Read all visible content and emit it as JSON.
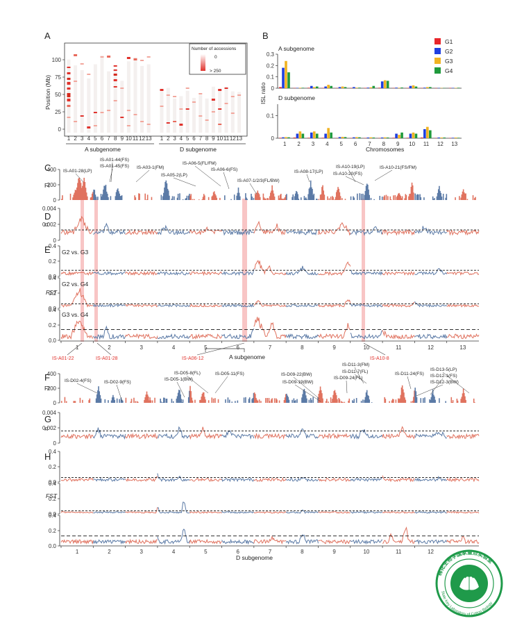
{
  "colors": {
    "red": "#e0725f",
    "blue": "#5b7aa6",
    "dark_red": "#d42a1e",
    "G1": "#e8262b",
    "G2": "#1f3fe0",
    "G3": "#f0b323",
    "G4": "#1f9a3c",
    "highlight": "#f6b7b7",
    "seal": "#1f9a4a"
  },
  "panelA": {
    "letter": "A",
    "ylabel": "Position (Mb)",
    "yticks": [
      "100",
      "75",
      "50",
      "25",
      "0"
    ],
    "xticks_A": [
      "1",
      "2",
      "3",
      "4",
      "5",
      "6",
      "7",
      "8",
      "9",
      "10",
      "11",
      "12",
      "13"
    ],
    "xticks_D": [
      "1",
      "2",
      "3",
      "4",
      "5",
      "6",
      "7",
      "8",
      "9",
      "10",
      "11",
      "12",
      "13"
    ],
    "group_A": "A subgenome",
    "group_D": "D subgenome",
    "legend_title": "Number of accessions",
    "legend_min": "0",
    "legend_max": "> 250"
  },
  "chart_data": [
    {
      "type": "bar",
      "panel": "B",
      "title": "A subgenome",
      "ylabel": "ISL ratio",
      "ylim": [
        0,
        0.3
      ],
      "yticks": [
        "0.3",
        "0.2",
        "0.1",
        "0"
      ],
      "categories": [
        "1",
        "2",
        "3",
        "4",
        "5",
        "6",
        "7",
        "8",
        "9",
        "10",
        "11",
        "12",
        "13"
      ],
      "series": [
        {
          "name": "G1",
          "values": [
            0.01,
            0.002,
            0.004,
            0.003,
            0.002,
            0.002,
            0.003,
            0.004,
            0.002,
            0.003,
            0.002,
            0.001,
            0.002
          ]
        },
        {
          "name": "G2",
          "values": [
            0.18,
            0.003,
            0.02,
            0.015,
            0.01,
            0.01,
            0.005,
            0.06,
            0.005,
            0.02,
            0.005,
            0.002,
            0.003
          ]
        },
        {
          "name": "G3",
          "values": [
            0.24,
            0.004,
            0.01,
            0.03,
            0.015,
            0.005,
            0.008,
            0.07,
            0.004,
            0.025,
            0.01,
            0.002,
            0.003
          ]
        },
        {
          "name": "G4",
          "values": [
            0.14,
            0.004,
            0.015,
            0.02,
            0.01,
            0.005,
            0.02,
            0.065,
            0.006,
            0.015,
            0.01,
            0.002,
            0.004
          ]
        }
      ]
    },
    {
      "type": "bar",
      "panel": "B",
      "title": "D subgenome",
      "xlabel": "Chromosomes",
      "ylim": [
        0,
        0.15
      ],
      "yticks": [
        "0.1",
        "0"
      ],
      "categories": [
        "1",
        "2",
        "3",
        "4",
        "5",
        "6",
        "7",
        "8",
        "9",
        "10",
        "11",
        "12",
        "13"
      ],
      "series": [
        {
          "name": "G1",
          "values": [
            0.002,
            0.003,
            0.002,
            0.002,
            0.001,
            0.001,
            0.001,
            0.001,
            0.002,
            0.002,
            0.003,
            0.001,
            0.001
          ]
        },
        {
          "name": "G2",
          "values": [
            0.004,
            0.02,
            0.025,
            0.02,
            0.005,
            0.004,
            0.003,
            0.003,
            0.02,
            0.02,
            0.04,
            0.003,
            0.002
          ]
        },
        {
          "name": "G3",
          "values": [
            0.005,
            0.03,
            0.03,
            0.045,
            0.006,
            0.005,
            0.004,
            0.004,
            0.015,
            0.025,
            0.05,
            0.003,
            0.003
          ]
        },
        {
          "name": "G4",
          "values": [
            0.004,
            0.02,
            0.02,
            0.025,
            0.005,
            0.004,
            0.003,
            0.003,
            0.025,
            0.02,
            0.035,
            0.003,
            0.002
          ]
        }
      ]
    }
  ],
  "panelB": {
    "letter": "B",
    "legend": [
      "G1",
      "G2",
      "G3",
      "G4"
    ]
  },
  "panelC": {
    "letter": "C",
    "ylabel": "FI",
    "yticks": [
      "400",
      "200",
      "0"
    ],
    "labels": [
      "IS-A01-28(LP)",
      "IS-A01-44(FS)",
      "IS-A01-45(FS)",
      "IS-A03-1(FM)",
      "IS-A05-2(LP)",
      "IS-A06-5(FL/FM)",
      "IS-A06-6(FS)",
      "IS-A07-1/2/3(FL/BW)",
      "IS-A08-17(LP)",
      "IS-A10-19(LP)",
      "IS-A10-20(FS)",
      "IS-A10-21(FS/FM)"
    ]
  },
  "panelD": {
    "letter": "D",
    "ylabel": "π",
    "yticks": [
      "0.004",
      "0.002",
      "0"
    ]
  },
  "panelE": {
    "letter": "E",
    "ylabel": "FST",
    "yticks": [
      "0.4",
      "0.2",
      "0.0"
    ],
    "sub_labels": [
      "G2 vs. G3",
      "G2 vs. G4",
      "G3 vs. G4"
    ]
  },
  "axisA": {
    "ticks": [
      "1",
      "2",
      "3",
      "4",
      "5",
      "6",
      "7",
      "8",
      "9",
      "10",
      "11",
      "12",
      "13"
    ],
    "xlabel": "A subgenome",
    "red_labels": [
      "IS-A01-22",
      "IS-A01-28",
      "IS-A06-12",
      "IS-A10-8"
    ]
  },
  "panelF": {
    "letter": "F",
    "ylabel": "FI",
    "yticks": [
      "400",
      "200",
      "0"
    ],
    "labels": [
      "IS-D02-4(FS)",
      "IS-D02-9(FS)",
      "IS-D05-8(FL)",
      "IS-D05-1(BW)",
      "IS-D05-11(FS)",
      "IS-D09-22(BW)",
      "IS-D09-19(BW)",
      "IS-D11-3(FM)",
      "IS-D11-7(FL)",
      "IS-D09-24(FL)",
      "IS-D11-24(FS)",
      "IS-D13-5(LP)",
      "IS-D12-1(FS)",
      "IS-D12-3(BW)"
    ]
  },
  "panelG": {
    "letter": "G",
    "ylabel": "π",
    "yticks": [
      "0.004",
      "0.002",
      "0"
    ]
  },
  "panelH": {
    "letter": "H",
    "ylabel": "FST",
    "yticks": [
      "0.4",
      "0.2",
      "0.0"
    ]
  },
  "axisD": {
    "ticks": [
      "1",
      "2",
      "3",
      "4",
      "5",
      "6",
      "7",
      "8",
      "9",
      "10",
      "11",
      "12"
    ],
    "xlabel": "D subgenome"
  },
  "seal": {
    "text": "State Key Laboratory of Cotton Biology",
    "chinese": "棉花生物学国家重点实验室"
  }
}
